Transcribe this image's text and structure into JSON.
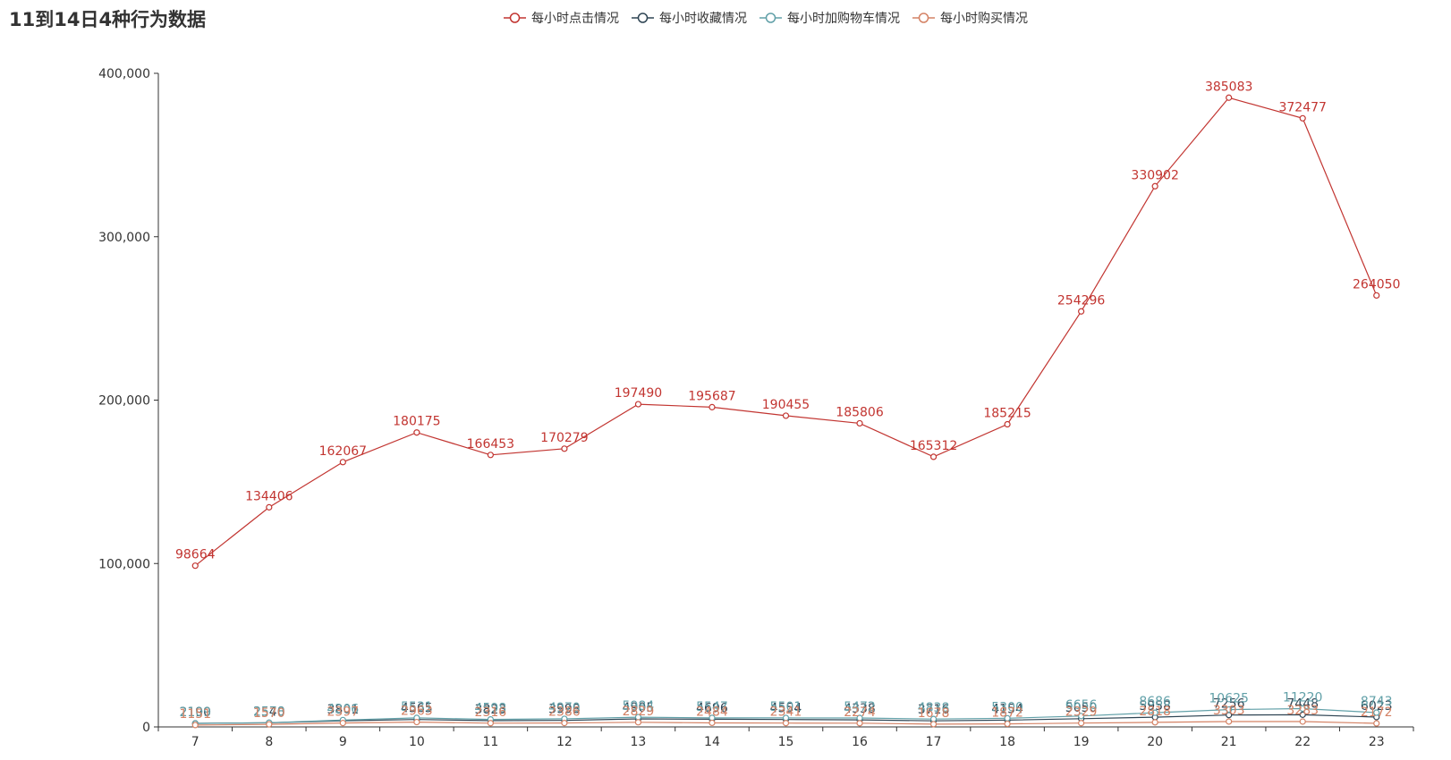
{
  "chart_data": {
    "type": "line",
    "title": "11到14日4种行为数据",
    "xlabel": "",
    "ylabel": "",
    "categories": [
      "7",
      "8",
      "9",
      "10",
      "11",
      "12",
      "13",
      "14",
      "15",
      "16",
      "17",
      "18",
      "19",
      "20",
      "21",
      "22",
      "23"
    ],
    "ylim": [
      0,
      400000
    ],
    "yticks": [
      "0",
      "100,000",
      "200,000",
      "300,000",
      "400,000"
    ],
    "legend_position": "top-center",
    "grid": false,
    "series": [
      {
        "name": "每小时点击情况",
        "color": "#c23531",
        "values": [
          98664,
          134406,
          162067,
          180175,
          166453,
          170279,
          197490,
          195687,
          190455,
          185806,
          165312,
          185215,
          254296,
          330902,
          385083,
          372477,
          264050
        ]
      },
      {
        "name": "每小时收藏情况",
        "color": "#2f4554",
        "values": [
          2190,
          2540,
          3801,
          4565,
          3823,
          3998,
          4905,
          4696,
          4554,
          4338,
          3716,
          4154,
          5050,
          5958,
          7256,
          7448,
          6023
        ]
      },
      {
        "name": "每小时加购物车情况",
        "color": "#61a0a8",
        "values": [
          2109,
          2578,
          4206,
          5531,
          4598,
          4970,
          5984,
          5547,
          5501,
          5472,
          4838,
          5300,
          6656,
          8686,
          10625,
          11220,
          8743
        ]
      },
      {
        "name": "每小时购买情况",
        "color": "#d48265",
        "values": [
          1151,
          1570,
          2397,
          2963,
          2316,
          2386,
          2829,
          2484,
          2341,
          2274,
          1678,
          1872,
          2329,
          2818,
          3303,
          3283,
          2172
        ]
      }
    ]
  }
}
